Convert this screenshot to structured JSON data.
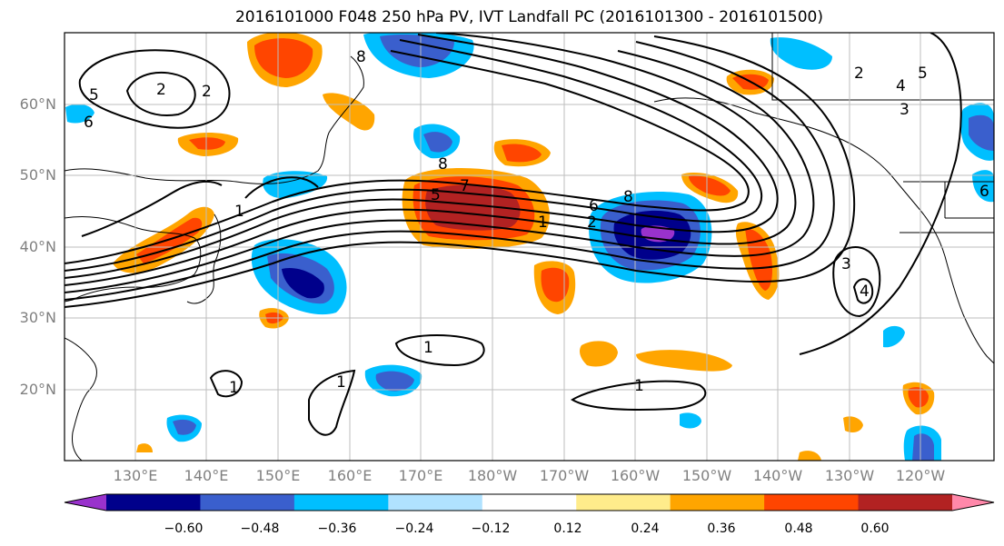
{
  "title": "2016101000 F048 250 hPa PV, IVT Landfall PC (2016101300 - 2016101500)",
  "lat_labels": [
    "60°N",
    "50°N",
    "40°N",
    "30°N",
    "20°N"
  ],
  "lon_labels": [
    "130°E",
    "140°E",
    "150°E",
    "160°E",
    "170°E",
    "180°W",
    "170°W",
    "160°W",
    "150°W",
    "140°W",
    "130°W",
    "120°W"
  ],
  "colorbar": {
    "colors": [
      "#9932cc",
      "#00008b",
      "#3a5fcd",
      "#00bfff",
      "#b0e2ff",
      "#ffffff",
      "#ffec8b",
      "#ffa500",
      "#ff4500",
      "#b22222",
      "#ff88aa"
    ],
    "tick_labels": [
      "−0.60",
      "−0.48",
      "−0.36",
      "−0.24",
      "−0.12",
      "0.12",
      "0.24",
      "0.36",
      "0.48",
      "0.60"
    ]
  },
  "contour_labels": [
    "5",
    "2",
    "2",
    "6",
    "8",
    "7",
    "5",
    "1",
    "6",
    "8",
    "2",
    "1",
    "3",
    "4",
    "1",
    "1",
    "1",
    "1",
    "4",
    "3",
    "2",
    "5",
    "8",
    "6"
  ]
}
